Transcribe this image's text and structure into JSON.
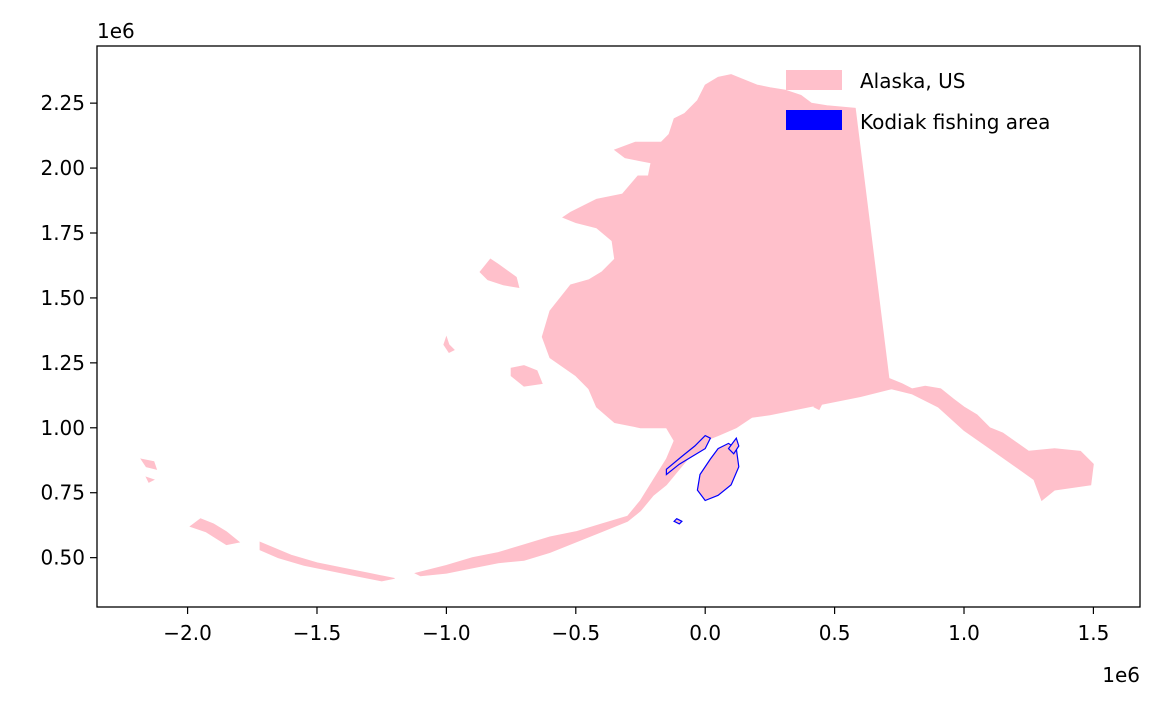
{
  "chart_data": {
    "type": "map",
    "title": "",
    "xlabel": "",
    "ylabel": "",
    "x_offset_label": "1e6",
    "y_offset_label": "1e6",
    "xlim": [
      -2.35,
      1.68
    ],
    "ylim": [
      0.31,
      2.47
    ],
    "x_ticks": [
      {
        "value": -2.0,
        "label": "−2.0"
      },
      {
        "value": -1.5,
        "label": "−1.5"
      },
      {
        "value": -1.0,
        "label": "−1.0"
      },
      {
        "value": -0.5,
        "label": "−0.5"
      },
      {
        "value": 0.0,
        "label": "0.0"
      },
      {
        "value": 0.5,
        "label": "0.5"
      },
      {
        "value": 1.0,
        "label": "1.0"
      },
      {
        "value": 1.5,
        "label": "1.5"
      }
    ],
    "y_ticks": [
      {
        "value": 0.5,
        "label": "0.50"
      },
      {
        "value": 0.75,
        "label": "0.75"
      },
      {
        "value": 1.0,
        "label": "1.00"
      },
      {
        "value": 1.25,
        "label": "1.25"
      },
      {
        "value": 1.5,
        "label": "1.50"
      },
      {
        "value": 1.75,
        "label": "1.75"
      },
      {
        "value": 2.0,
        "label": "2.00"
      },
      {
        "value": 2.25,
        "label": "2.25"
      }
    ],
    "legend": {
      "placement": "top-right",
      "entries": [
        {
          "label": "Alaska, US",
          "color": "#ffc0cb"
        },
        {
          "label": "Kodiak fishing area",
          "color": "#0000ff"
        }
      ]
    },
    "layers": [
      {
        "name": "Alaska, US",
        "fill": "#ffc0cb",
        "stroke": "none",
        "polygons": [
          [
            [
              -0.52,
              1.83
            ],
            [
              -0.42,
              1.88
            ],
            [
              -0.32,
              1.9
            ],
            [
              -0.26,
              1.97
            ],
            [
              -0.22,
              1.97
            ],
            [
              -0.21,
              2.02
            ],
            [
              -0.26,
              2.03
            ],
            [
              -0.31,
              2.04
            ],
            [
              -0.35,
              2.07
            ],
            [
              -0.27,
              2.1
            ],
            [
              -0.17,
              2.1
            ],
            [
              -0.14,
              2.13
            ],
            [
              -0.12,
              2.19
            ],
            [
              -0.08,
              2.21
            ],
            [
              -0.03,
              2.26
            ],
            [
              0.0,
              2.32
            ],
            [
              0.05,
              2.35
            ],
            [
              0.1,
              2.36
            ],
            [
              0.15,
              2.34
            ],
            [
              0.2,
              2.32
            ],
            [
              0.25,
              2.31
            ],
            [
              0.31,
              2.3
            ],
            [
              0.37,
              2.28
            ],
            [
              0.41,
              2.25
            ],
            [
              0.47,
              2.24
            ],
            [
              0.58,
              2.23
            ],
            [
              0.71,
              1.19
            ],
            [
              0.76,
              1.17
            ],
            [
              0.8,
              1.15
            ],
            [
              0.85,
              1.16
            ],
            [
              0.91,
              1.15
            ],
            [
              0.96,
              1.11
            ],
            [
              1.0,
              1.08
            ],
            [
              1.05,
              1.05
            ],
            [
              1.1,
              1.0
            ],
            [
              1.15,
              0.98
            ],
            [
              1.25,
              0.91
            ],
            [
              1.35,
              0.92
            ],
            [
              1.45,
              0.91
            ],
            [
              1.5,
              0.86
            ],
            [
              1.49,
              0.78
            ],
            [
              1.35,
              0.76
            ],
            [
              1.3,
              0.72
            ],
            [
              1.27,
              0.8
            ],
            [
              1.2,
              0.85
            ],
            [
              1.1,
              0.92
            ],
            [
              1.0,
              0.99
            ],
            [
              0.9,
              1.08
            ],
            [
              0.8,
              1.13
            ],
            [
              0.72,
              1.15
            ],
            [
              0.6,
              1.12
            ],
            [
              0.45,
              1.09
            ],
            [
              0.35,
              1.07
            ],
            [
              0.25,
              1.05
            ],
            [
              0.18,
              1.04
            ],
            [
              0.12,
              1.0
            ],
            [
              0.05,
              0.97
            ],
            [
              0.0,
              0.95
            ],
            [
              -0.05,
              0.9
            ],
            [
              -0.1,
              0.84
            ],
            [
              -0.15,
              0.78
            ],
            [
              -0.2,
              0.74
            ],
            [
              -0.25,
              0.68
            ],
            [
              -0.3,
              0.64
            ],
            [
              -0.4,
              0.6
            ],
            [
              -0.5,
              0.56
            ],
            [
              -0.6,
              0.52
            ],
            [
              -0.7,
              0.49
            ],
            [
              -0.8,
              0.48
            ],
            [
              -0.9,
              0.46
            ],
            [
              -1.0,
              0.44
            ],
            [
              -1.1,
              0.43
            ],
            [
              -1.12,
              0.44
            ],
            [
              -1.0,
              0.47
            ],
            [
              -0.9,
              0.5
            ],
            [
              -0.8,
              0.52
            ],
            [
              -0.7,
              0.55
            ],
            [
              -0.6,
              0.58
            ],
            [
              -0.5,
              0.6
            ],
            [
              -0.4,
              0.63
            ],
            [
              -0.3,
              0.66
            ],
            [
              -0.25,
              0.72
            ],
            [
              -0.2,
              0.8
            ],
            [
              -0.15,
              0.88
            ],
            [
              -0.12,
              0.95
            ],
            [
              -0.15,
              1.0
            ],
            [
              -0.25,
              1.0
            ],
            [
              -0.35,
              1.02
            ],
            [
              -0.42,
              1.08
            ],
            [
              -0.45,
              1.15
            ],
            [
              -0.5,
              1.2
            ],
            [
              -0.6,
              1.27
            ],
            [
              -0.63,
              1.35
            ],
            [
              -0.6,
              1.45
            ],
            [
              -0.52,
              1.55
            ],
            [
              -0.45,
              1.57
            ],
            [
              -0.4,
              1.6
            ],
            [
              -0.35,
              1.65
            ],
            [
              -0.36,
              1.72
            ],
            [
              -0.42,
              1.77
            ],
            [
              -0.5,
              1.79
            ],
            [
              -0.55,
              1.81
            ]
          ],
          [
            [
              -0.87,
              1.6
            ],
            [
              -0.83,
              1.65
            ],
            [
              -0.8,
              1.63
            ],
            [
              -0.73,
              1.58
            ],
            [
              -0.72,
              1.54
            ],
            [
              -0.78,
              1.55
            ],
            [
              -0.84,
              1.57
            ]
          ],
          [
            [
              -0.75,
              1.23
            ],
            [
              -0.7,
              1.24
            ],
            [
              -0.65,
              1.22
            ],
            [
              -0.63,
              1.17
            ],
            [
              -0.7,
              1.16
            ],
            [
              -0.75,
              1.2
            ]
          ],
          [
            [
              -1.0,
              1.35
            ],
            [
              -0.99,
              1.32
            ],
            [
              -0.97,
              1.3
            ],
            [
              -0.99,
              1.29
            ],
            [
              -1.01,
              1.32
            ]
          ],
          [
            [
              -2.18,
              0.88
            ],
            [
              -2.13,
              0.87
            ],
            [
              -2.12,
              0.84
            ],
            [
              -2.16,
              0.85
            ]
          ],
          [
            [
              -2.16,
              0.81
            ],
            [
              -2.13,
              0.8
            ],
            [
              -2.15,
              0.79
            ]
          ],
          [
            [
              -1.99,
              0.62
            ],
            [
              -1.95,
              0.65
            ],
            [
              -1.9,
              0.63
            ],
            [
              -1.85,
              0.6
            ],
            [
              -1.8,
              0.56
            ],
            [
              -1.85,
              0.55
            ],
            [
              -1.93,
              0.6
            ]
          ],
          [
            [
              -1.72,
              0.56
            ],
            [
              -1.6,
              0.51
            ],
            [
              -1.5,
              0.48
            ],
            [
              -1.4,
              0.46
            ],
            [
              -1.3,
              0.44
            ],
            [
              -1.2,
              0.42
            ],
            [
              -1.25,
              0.41
            ],
            [
              -1.35,
              0.43
            ],
            [
              -1.45,
              0.45
            ],
            [
              -1.55,
              0.47
            ],
            [
              -1.65,
              0.5
            ],
            [
              -1.72,
              0.53
            ]
          ],
          [
            [
              0.43,
              1.1
            ],
            [
              0.45,
              1.09
            ],
            [
              0.44,
              1.07
            ],
            [
              0.42,
              1.08
            ]
          ]
        ]
      },
      {
        "name": "Kodiak fishing area",
        "fill": "#ffc0cb",
        "stroke": "#0000ff",
        "polygons": [
          [
            [
              0.0,
              0.72
            ],
            [
              0.05,
              0.74
            ],
            [
              0.1,
              0.78
            ],
            [
              0.13,
              0.85
            ],
            [
              0.12,
              0.92
            ],
            [
              0.09,
              0.94
            ],
            [
              0.05,
              0.92
            ],
            [
              0.02,
              0.88
            ],
            [
              -0.02,
              0.82
            ],
            [
              -0.03,
              0.76
            ]
          ],
          [
            [
              -0.15,
              0.82
            ],
            [
              -0.1,
              0.86
            ],
            [
              -0.05,
              0.89
            ],
            [
              0.0,
              0.92
            ],
            [
              0.02,
              0.96
            ],
            [
              0.0,
              0.97
            ],
            [
              -0.04,
              0.93
            ],
            [
              -0.09,
              0.89
            ],
            [
              -0.15,
              0.84
            ]
          ],
          [
            [
              -0.11,
              0.65
            ],
            [
              -0.09,
              0.64
            ],
            [
              -0.1,
              0.63
            ],
            [
              -0.12,
              0.64
            ]
          ],
          [
            [
              0.09,
              0.92
            ],
            [
              0.12,
              0.96
            ],
            [
              0.13,
              0.93
            ],
            [
              0.11,
              0.9
            ]
          ]
        ]
      }
    ]
  }
}
